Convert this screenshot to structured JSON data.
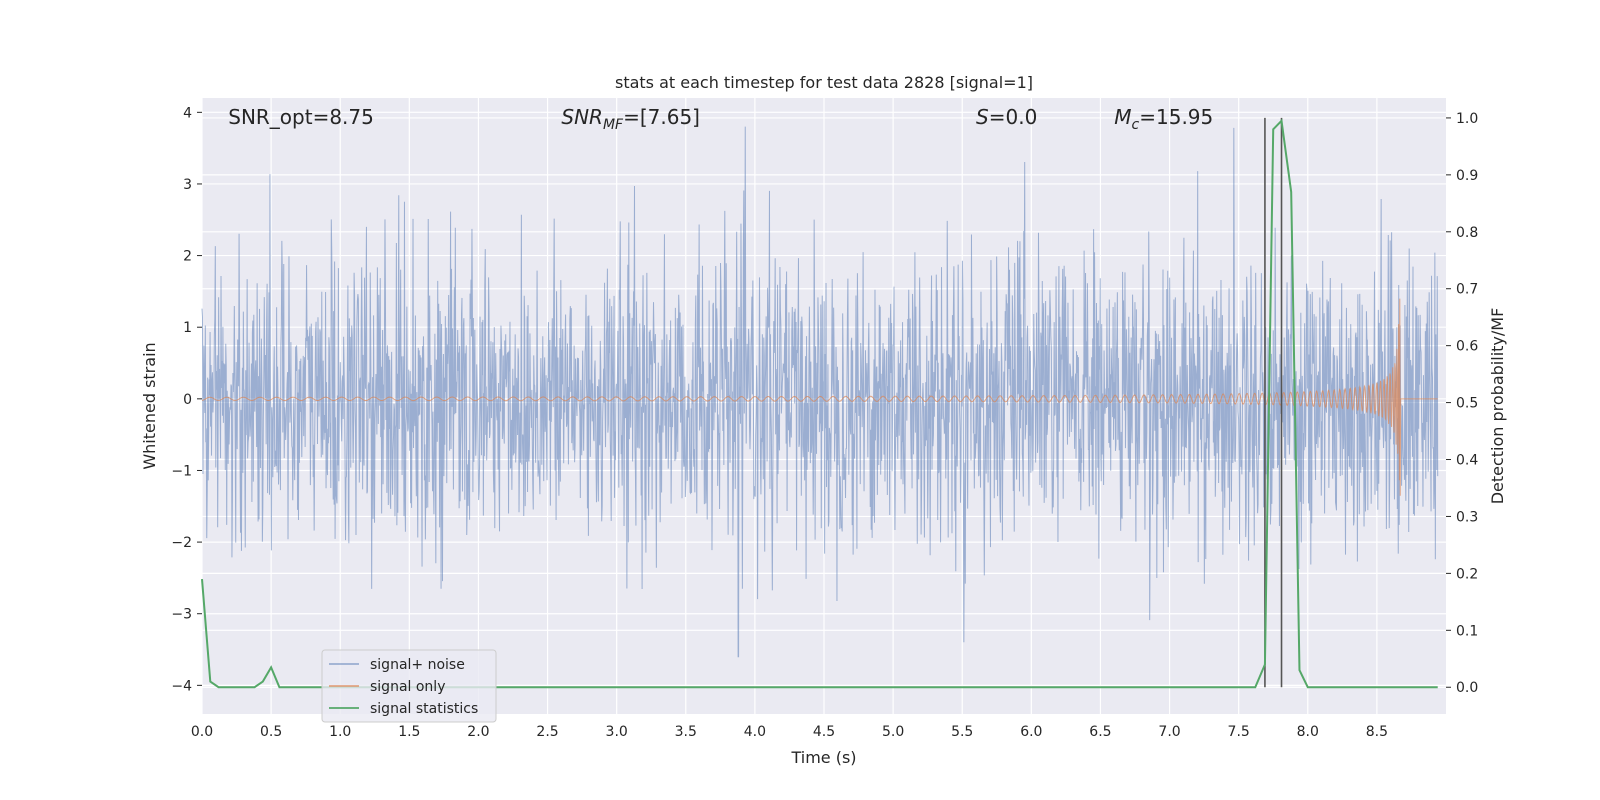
{
  "chart_data": {
    "type": "line",
    "title": "stats at each timestep for test data 2828 [signal=1]",
    "xlabel": "Time (s)",
    "ylabel": "Whitened strain",
    "ylabel_right": "Detection probability/MF",
    "xlim": [
      0,
      9.0
    ],
    "ylim": [
      -4.4,
      4.2
    ],
    "ylim_right": [
      -0.047,
      1.035
    ],
    "xticks": [
      "0.0",
      "0.5",
      "1.0",
      "1.5",
      "2.0",
      "2.5",
      "3.0",
      "3.5",
      "4.0",
      "4.5",
      "5.0",
      "5.5",
      "6.0",
      "6.5",
      "7.0",
      "7.5",
      "8.0",
      "8.5"
    ],
    "yticks": [
      "−4",
      "−3",
      "−2",
      "−1",
      "0",
      "1",
      "2",
      "3",
      "4"
    ],
    "yticks_right": [
      "0.0",
      "0.1",
      "0.2",
      "0.3",
      "0.4",
      "0.5",
      "0.6",
      "0.7",
      "0.8",
      "0.9",
      "1.0"
    ],
    "grid": true,
    "legend_position": "lower-left",
    "annotations": [
      {
        "text": "SNR_opt=8.75",
        "x": 0.19
      },
      {
        "text": "SNR",
        "sub": "MF",
        "after": "=[7.65]",
        "italic": true,
        "x": 2.6
      },
      {
        "text": "S",
        "after": "=0.0",
        "italic": true,
        "x": 5.6
      },
      {
        "text": "M",
        "sub": "c",
        "after": "=15.95",
        "italic": true,
        "x": 6.6
      }
    ],
    "vlines": [
      7.69,
      7.81
    ],
    "series": [
      {
        "name": "signal+ noise",
        "color": "#4c72b0",
        "description": "whitened noise time series, std ~1, peaks ~±3.8, dip to -4.0 at 3.88s"
      },
      {
        "name": "signal only",
        "color": "#dd8452",
        "description": "chirp growing from 4.5s to merger ~8.67s, peak amplitude ~1.4"
      },
      {
        "name": "signal statistics",
        "color": "#55a868",
        "x": [
          0.0,
          0.06,
          0.12,
          0.19,
          0.25,
          0.31,
          0.38,
          0.44,
          0.5,
          0.56,
          0.62,
          0.69,
          0.75,
          1.0,
          2.0,
          3.0,
          4.0,
          5.0,
          6.0,
          7.0,
          7.5,
          7.62,
          7.69,
          7.75,
          7.81,
          7.88,
          7.94,
          8.0,
          8.06,
          8.5,
          8.94
        ],
        "values": [
          0.19,
          0.01,
          0.0,
          0.0,
          0.0,
          0.0,
          0.0,
          0.01,
          0.035,
          0.0,
          0.0,
          0.0,
          0.0,
          0.0,
          0.0,
          0.0,
          0.0,
          0.0,
          0.0,
          0.0,
          0.0,
          0.0,
          0.04,
          0.98,
          0.995,
          0.87,
          0.03,
          0.0,
          0.0,
          0.0,
          0.0
        ]
      }
    ]
  },
  "colors": {
    "axes_bg": "#eaeaf2",
    "grid": "#ffffff",
    "vline": "#555555"
  }
}
